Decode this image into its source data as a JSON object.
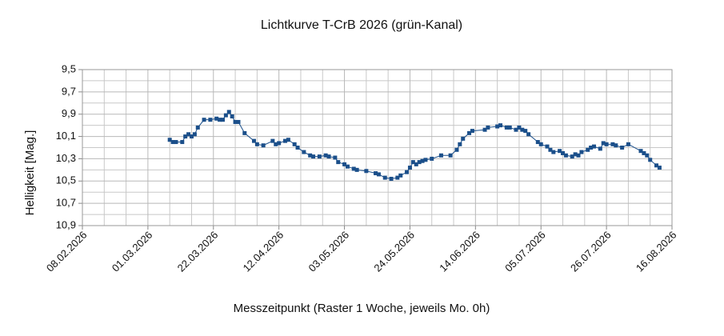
{
  "chart_data": {
    "type": "line",
    "title": "Lichtkurve T-CrB 2026 (grün-Kanal)",
    "xlabel": "Messzeitpunkt (Raster 1 Woche, jeweils Mo. 0h)",
    "ylabel": "Helligkeit [Mag.]",
    "xlim": [
      "08.02.2026",
      "16.08.2026"
    ],
    "xticks": [
      "08.02.2026",
      "01.03.2026",
      "22.03.2026",
      "12.04.2026",
      "03.05.2026",
      "24.05.2026",
      "14.06.2026",
      "05.07.2026",
      "26.07.2026",
      "16.08.2026"
    ],
    "ylim": [
      10.9,
      9.5
    ],
    "yticks": [
      {
        "value": 9.5,
        "label": "9,5"
      },
      {
        "value": 9.7,
        "label": "9,7"
      },
      {
        "value": 9.9,
        "label": "9,9"
      },
      {
        "value": 10.1,
        "label": "10,1"
      },
      {
        "value": 10.3,
        "label": "10,3"
      },
      {
        "value": 10.5,
        "label": "10,5"
      },
      {
        "value": 10.7,
        "label": "10,7"
      },
      {
        "value": 10.9,
        "label": "10,9"
      }
    ],
    "grid": true,
    "x": [
      "08.03.2026",
      "09.03.2026",
      "10.03.2026",
      "12.03.2026",
      "13.03.2026",
      "14.03.2026",
      "15.03.2026",
      "16.03.2026",
      "17.03.2026",
      "19.03.2026",
      "21.03.2026",
      "23.03.2026",
      "24.03.2026",
      "25.03.2026",
      "26.03.2026",
      "27.03.2026",
      "28.03.2026",
      "29.03.2026",
      "30.03.2026",
      "01.04.2026",
      "04.04.2026",
      "05.04.2026",
      "07.04.2026",
      "10.04.2026",
      "11.04.2026",
      "12.04.2026",
      "14.04.2026",
      "15.04.2026",
      "17.04.2026",
      "18.04.2026",
      "20.04.2026",
      "22.04.2026",
      "23.04.2026",
      "25.04.2026",
      "27.04.2026",
      "28.04.2026",
      "30.04.2026",
      "01.05.2026",
      "03.05.2026",
      "04.05.2026",
      "06.05.2026",
      "07.05.2026",
      "10.05.2026",
      "13.05.2026",
      "14.05.2026",
      "16.05.2026",
      "18.05.2026",
      "20.05.2026",
      "21.05.2026",
      "23.05.2026",
      "24.05.2026",
      "25.05.2026",
      "26.05.2026",
      "27.05.2026",
      "28.05.2026",
      "29.05.2026",
      "31.05.2026",
      "03.06.2026",
      "06.06.2026",
      "08.06.2026",
      "09.06.2026",
      "10.06.2026",
      "12.06.2026",
      "13.06.2026",
      "17.06.2026",
      "18.06.2026",
      "21.06.2026",
      "22.06.2026",
      "24.06.2026",
      "25.06.2026",
      "27.06.2026",
      "28.06.2026",
      "29.06.2026",
      "30.06.2026",
      "01.07.2026",
      "04.07.2026",
      "05.07.2026",
      "07.07.2026",
      "08.07.2026",
      "09.07.2026",
      "11.07.2026",
      "12.07.2026",
      "13.07.2026",
      "15.07.2026",
      "16.07.2026",
      "17.07.2026",
      "18.07.2026",
      "20.07.2026",
      "21.07.2026",
      "22.07.2026",
      "24.07.2026",
      "25.07.2026",
      "26.07.2026",
      "28.07.2026",
      "29.07.2026",
      "31.07.2026",
      "02.08.2026",
      "06.08.2026",
      "07.08.2026",
      "08.08.2026",
      "09.08.2026",
      "11.08.2026",
      "12.08.2026"
    ],
    "series": [
      {
        "color": "#1b4f8a",
        "values": [
          10.13,
          10.15,
          10.15,
          10.15,
          10.1,
          10.08,
          10.1,
          10.08,
          10.02,
          9.95,
          9.95,
          9.94,
          9.95,
          9.95,
          9.91,
          9.88,
          9.92,
          9.97,
          9.97,
          10.07,
          10.14,
          10.17,
          10.18,
          10.14,
          10.17,
          10.16,
          10.14,
          10.13,
          10.17,
          10.2,
          10.24,
          10.27,
          10.28,
          10.28,
          10.27,
          10.28,
          10.29,
          10.33,
          10.35,
          10.37,
          10.39,
          10.4,
          10.41,
          10.43,
          10.44,
          10.47,
          10.48,
          10.47,
          10.45,
          10.42,
          10.38,
          10.33,
          10.35,
          10.33,
          10.32,
          10.31,
          10.3,
          10.27,
          10.27,
          10.22,
          10.17,
          10.12,
          10.07,
          10.05,
          10.04,
          10.02,
          10.01,
          10.0,
          10.02,
          10.02,
          10.04,
          10.02,
          10.04,
          10.05,
          10.08,
          10.15,
          10.17,
          10.19,
          10.22,
          10.24,
          10.23,
          10.25,
          10.27,
          10.28,
          10.26,
          10.27,
          10.24,
          10.22,
          10.2,
          10.19,
          10.21,
          10.16,
          10.17,
          10.17,
          10.18,
          10.2,
          10.17,
          10.23,
          10.25,
          10.27,
          10.31,
          10.36,
          10.38
        ]
      }
    ]
  }
}
